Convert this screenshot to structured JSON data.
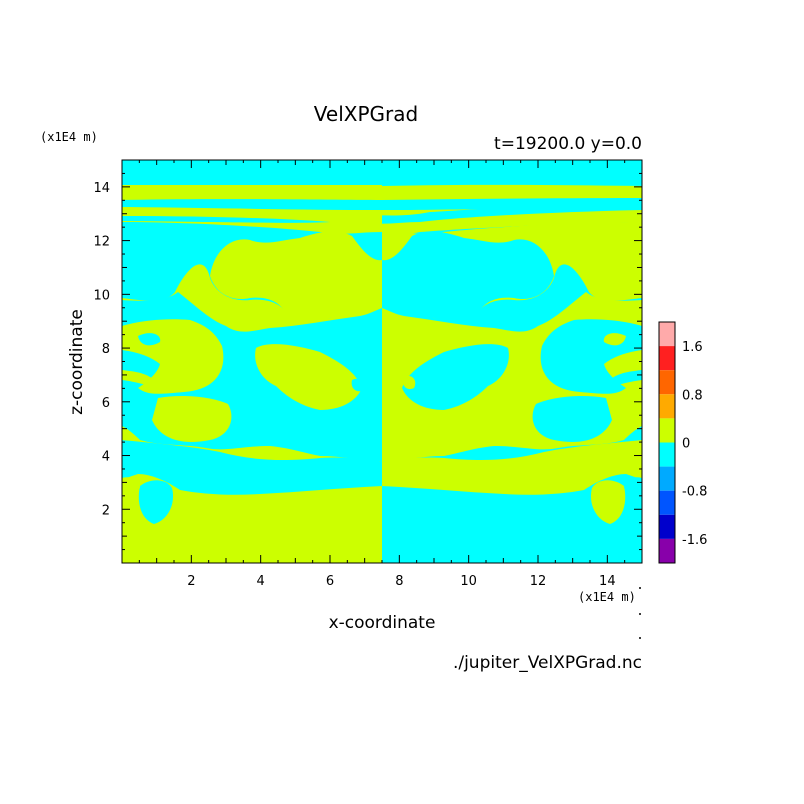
{
  "chart_data": {
    "type": "heatmap",
    "title": "VelXPGrad",
    "subtitle": "t=19200.0 y=0.0",
    "xlabel": "x-coordinate",
    "ylabel": "z-coordinate",
    "x_unit": "(x1E4 m)",
    "y_unit": "(x1E4 m)",
    "footer": "./jupiter_VelXPGrad.nc",
    "xlim": [
      0,
      15
    ],
    "ylim": [
      0,
      15
    ],
    "x_ticks": [
      "2",
      "4",
      "6",
      "8",
      "10",
      "12",
      "14"
    ],
    "y_ticks": [
      "2",
      "4",
      "6",
      "8",
      "10",
      "12",
      "14"
    ],
    "colorbar": {
      "labels": [
        "1.6",
        "0.8",
        "0",
        "-0.8",
        "-1.6"
      ],
      "levels": [
        {
          "range": [
            1.6,
            2.0
          ],
          "color": "#ffaaaa"
        },
        {
          "range": [
            1.2,
            1.6
          ],
          "color": "#ff2020"
        },
        {
          "range": [
            0.8,
            1.2
          ],
          "color": "#ff6600"
        },
        {
          "range": [
            0.4,
            0.8
          ],
          "color": "#ffaa00"
        },
        {
          "range": [
            0.0,
            0.4
          ],
          "color": "#ccff00"
        },
        {
          "range": [
            -0.4,
            0.0
          ],
          "color": "#00ffff"
        },
        {
          "range": [
            -0.8,
            -0.4
          ],
          "color": "#00aaff"
        },
        {
          "range": [
            -1.2,
            -0.8
          ],
          "color": "#0055ff"
        },
        {
          "range": [
            -1.6,
            -1.2
          ],
          "color": "#0000cc"
        },
        {
          "range": [
            -2.0,
            -1.6
          ],
          "color": "#8800aa"
        }
      ]
    },
    "field_colors": {
      "positive": "#ccff00",
      "negative": "#00ffff"
    },
    "center_split_x": 7.5
  }
}
